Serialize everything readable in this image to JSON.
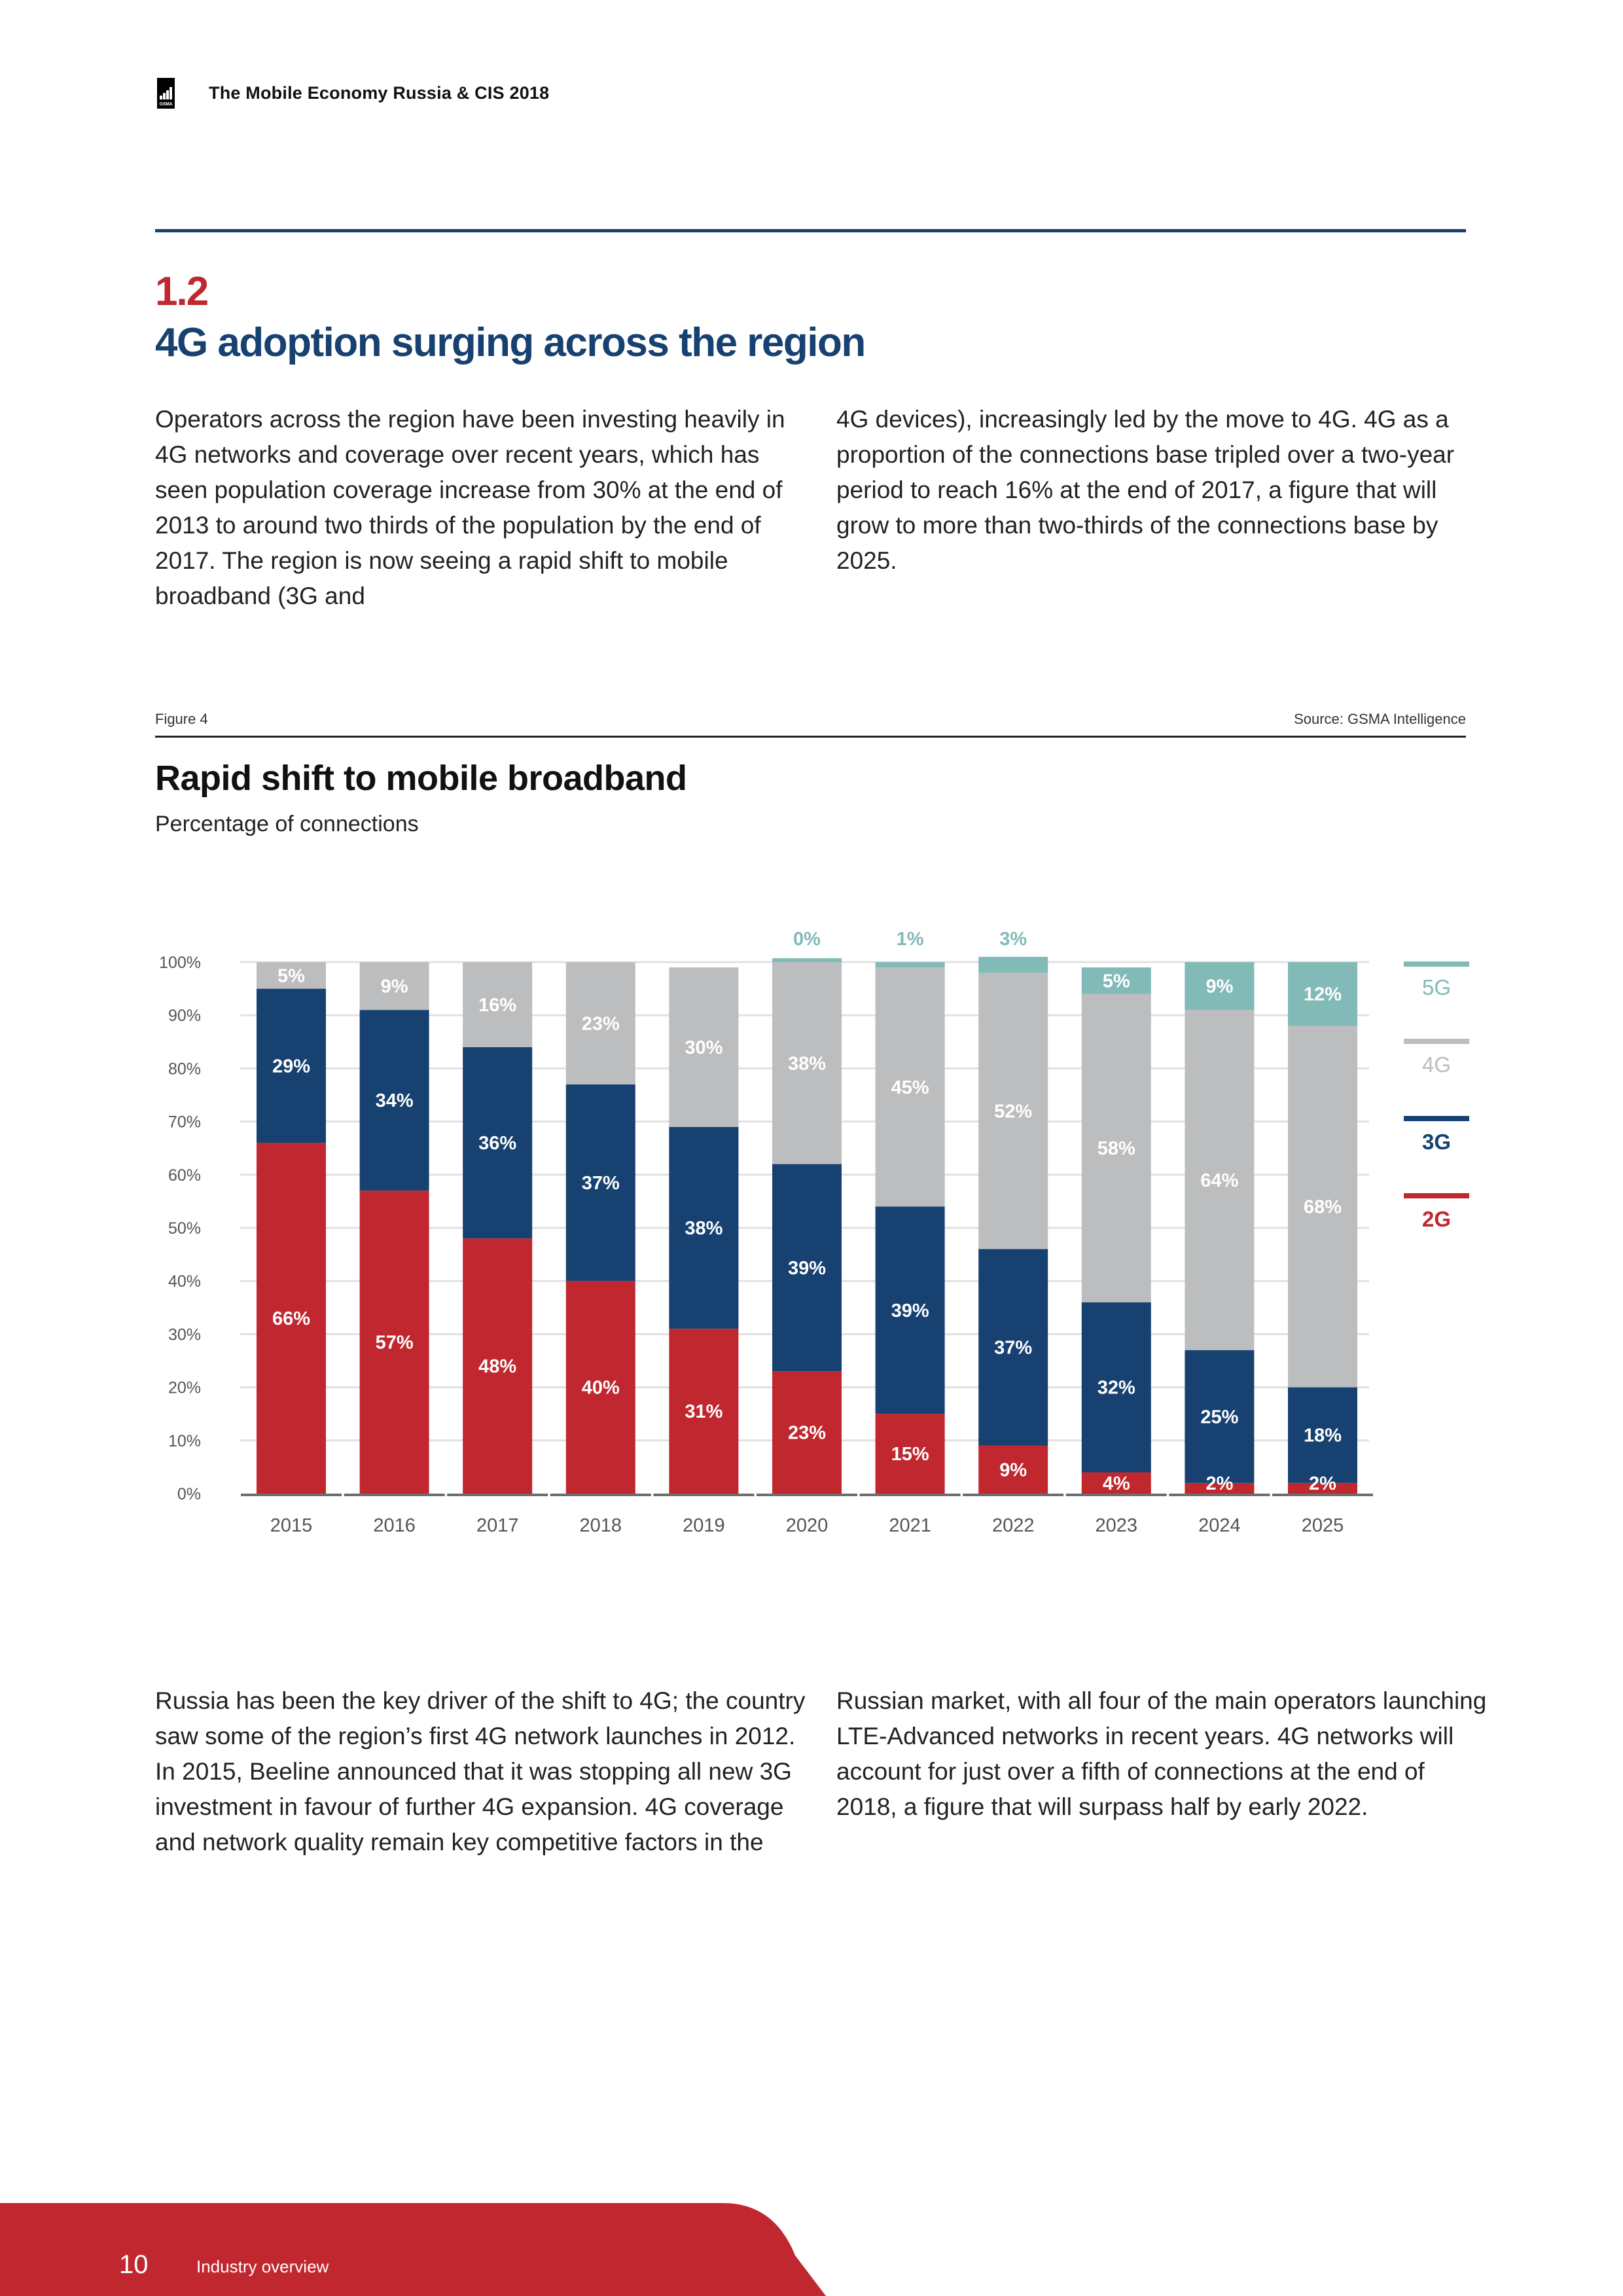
{
  "header": {
    "logo_text": "GSMA",
    "title": "The Mobile Economy Russia & CIS 2018"
  },
  "section": {
    "number": "1.2",
    "title": "4G adoption surging across the region"
  },
  "body_top": {
    "col1": "Operators across the region have been investing heavily in 4G networks and coverage over recent years, which has seen population coverage increase from 30% at the end of 2013 to around two thirds of the population by the end of 2017. The region is now seeing a rapid shift to mobile broadband (3G and",
    "col2": "4G devices), increasingly led by the move to 4G. 4G as a proportion of the connections base tripled over a two-year period to reach 16% at the end of 2017, a figure that will grow to more than two-thirds of the connections base by 2025."
  },
  "figure": {
    "label": "Figure 4",
    "source": "Source: GSMA Intelligence"
  },
  "chart_data": {
    "type": "bar",
    "stacked": true,
    "title": "Rapid shift to mobile broadband",
    "subtitle": "Percentage of connections",
    "xlabel": "",
    "ylabel": "",
    "ylim": [
      0,
      100
    ],
    "yticks": [
      0,
      10,
      20,
      30,
      40,
      50,
      60,
      70,
      80,
      90,
      100
    ],
    "ytick_labels": [
      "0%",
      "10%",
      "20%",
      "30%",
      "40%",
      "50%",
      "60%",
      "70%",
      "80%",
      "90%",
      "100%"
    ],
    "grid": true,
    "legend_position": "right",
    "categories": [
      "2015",
      "2016",
      "2017",
      "2018",
      "2019",
      "2020",
      "2021",
      "2022",
      "2023",
      "2024",
      "2025"
    ],
    "series": [
      {
        "name": "2G",
        "color": "#c0272f",
        "values": [
          66,
          57,
          48,
          40,
          31,
          23,
          15,
          9,
          4,
          2,
          2
        ]
      },
      {
        "name": "3G",
        "color": "#174170",
        "values": [
          29,
          34,
          36,
          37,
          38,
          39,
          39,
          37,
          32,
          25,
          18
        ]
      },
      {
        "name": "4G",
        "color": "#bcbdbf",
        "values": [
          5,
          9,
          16,
          23,
          30,
          38,
          45,
          52,
          58,
          64,
          68
        ]
      },
      {
        "name": "5G",
        "color": "#82bab7",
        "values": [
          0,
          0,
          0,
          0,
          0,
          0,
          1,
          3,
          5,
          9,
          12
        ]
      }
    ],
    "data_labels": {
      "2G": [
        "66%",
        "57%",
        "48%",
        "40%",
        "31%",
        "23%",
        "15%",
        "9%",
        "4%",
        "2%",
        "2%"
      ],
      "3G": [
        "29%",
        "34%",
        "36%",
        "37%",
        "38%",
        "39%",
        "39%",
        "37%",
        "32%",
        "25%",
        "18%"
      ],
      "4G": [
        "5%",
        "9%",
        "16%",
        "23%",
        "30%",
        "38%",
        "45%",
        "52%",
        "58%",
        "64%",
        "68%"
      ],
      "5G": [
        "",
        "",
        "",
        "",
        "",
        "0%",
        "1%",
        "3%",
        "5%",
        "9%",
        "12%"
      ]
    },
    "legend": [
      "5G",
      "4G",
      "3G",
      "2G"
    ]
  },
  "body_bottom": {
    "col1": "Russia has been the key driver of the shift to 4G; the country saw some of the region’s first 4G network launches in 2012. In 2015, Beeline announced that it was stopping all new 3G investment in favour of further 4G expansion. 4G coverage and network quality remain key competitive factors in the",
    "col2": "Russian market, with all four of the main operators launching LTE-Advanced networks in recent years. 4G networks will account for just over a fifth of connections at the end of 2018, a figure that will surpass half by early 2022."
  },
  "footer": {
    "page_number": "10",
    "section_name": "Industry overview",
    "color": "#c0272f"
  }
}
